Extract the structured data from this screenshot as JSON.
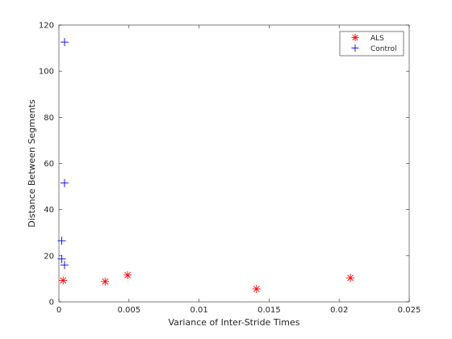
{
  "chart_data": {
    "type": "scatter",
    "title": "",
    "xlabel": "Variance of Inter-Stride Times",
    "ylabel": "Distance Between Segments",
    "xlim": [
      0,
      0.025
    ],
    "ylim": [
      0,
      120
    ],
    "xticks": [
      0,
      0.005,
      0.01,
      0.015,
      0.02,
      0.025
    ],
    "xtick_labels": [
      "0",
      "0.005",
      "0.01",
      "0.015",
      "0.02",
      "0.025"
    ],
    "yticks": [
      0,
      20,
      40,
      60,
      80,
      100,
      120
    ],
    "ytick_labels": [
      "0",
      "20",
      "40",
      "60",
      "80",
      "100",
      "120"
    ],
    "grid": false,
    "legend_position": "top-right",
    "series": [
      {
        "name": "ALS",
        "marker": "asterisk",
        "color": "#ff0000",
        "points": [
          {
            "x": 0.0003,
            "y": 9.3
          },
          {
            "x": 0.0033,
            "y": 8.8
          },
          {
            "x": 0.0049,
            "y": 11.6
          },
          {
            "x": 0.0141,
            "y": 5.6
          },
          {
            "x": 0.0208,
            "y": 10.4
          }
        ]
      },
      {
        "name": "Control",
        "marker": "plus",
        "color": "#0000ff",
        "points": [
          {
            "x": 0.0004,
            "y": 112.6
          },
          {
            "x": 0.0004,
            "y": 51.5
          },
          {
            "x": 0.0002,
            "y": 26.5
          },
          {
            "x": 0.0002,
            "y": 18.6
          },
          {
            "x": 0.0004,
            "y": 16.0
          }
        ]
      }
    ]
  }
}
